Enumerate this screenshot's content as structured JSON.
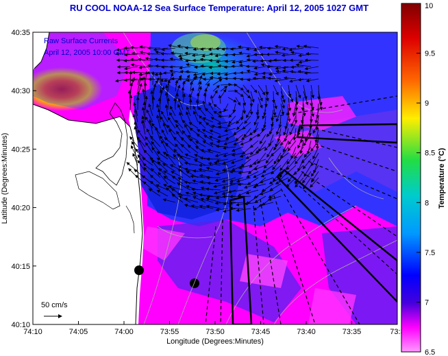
{
  "title": "RU COOL  NOAA-12  Sea Surface Temperature:  April 12, 2005 1027 GMT",
  "legend": {
    "line1": "Raw Surface Currents",
    "line2": "April 12, 2005 10:00 GMT",
    "scale_label": "50 cm/s"
  },
  "colors": {
    "land": "#ffffff",
    "coast": "#000000",
    "ocean_warm": "#ff00ff",
    "ocean_cool": "#0000ff",
    "accent_title": "#0000cc"
  },
  "chart_data": {
    "type": "heatmap",
    "title": "RU COOL  NOAA-12  Sea Surface Temperature:  April 12, 2005 1027 GMT",
    "xlabel": "Longitude (Degrees:Minutes)",
    "ylabel": "Latitude (Degrees:Minutes)",
    "x_ticks": [
      "74:10",
      "74:05",
      "74:00",
      "73:55",
      "73:50",
      "73:45",
      "73:40",
      "73:35",
      "73:3"
    ],
    "y_ticks": [
      "40:35",
      "40:30",
      "40:25",
      "40:20",
      "40:15",
      "40:10"
    ],
    "colorbar": {
      "label": "Temperature (°C)",
      "ticks": [
        "10",
        "9.5",
        "9",
        "8.5",
        "8",
        "7.5",
        "7",
        "6.5"
      ],
      "range": [
        6.5,
        10
      ]
    }
  }
}
